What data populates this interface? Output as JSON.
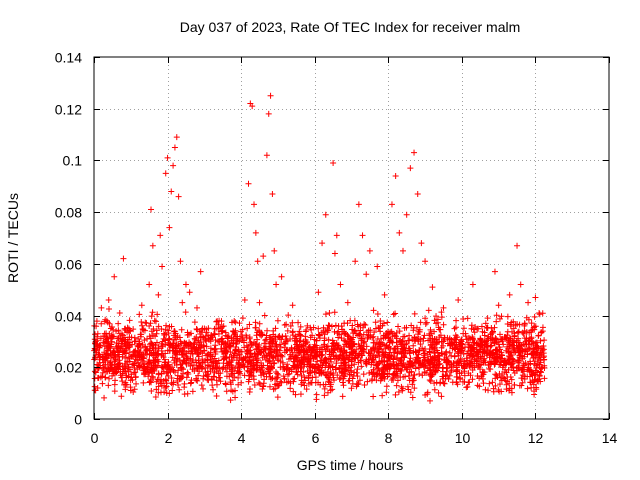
{
  "chart_data": {
    "type": "scatter",
    "title": "Day 037 of 2023, Rate Of TEC Index for receiver malm",
    "xlabel": "GPS time / hours",
    "ylabel": "ROTI / TECUs",
    "xlim": [
      0,
      14
    ],
    "ylim": [
      0,
      0.14
    ],
    "xticks": [
      0,
      2,
      4,
      6,
      8,
      10,
      12,
      14
    ],
    "xtick_labels": [
      "0",
      "2",
      "4",
      "6",
      "8",
      "10",
      "12",
      "14"
    ],
    "yticks": [
      0,
      0.02,
      0.04,
      0.06,
      0.08,
      0.1,
      0.12,
      0.14
    ],
    "ytick_labels": [
      "0",
      "0.02",
      "0.04",
      "0.06",
      "0.08",
      "0.1",
      "0.12",
      "0.14"
    ],
    "grid": true,
    "marker": "+",
    "color": "#ff0000",
    "series": [
      {
        "name": "ROTI",
        "x": [
          0.05,
          0.1,
          0.15,
          0.2,
          0.25,
          0.3,
          0.35,
          0.4,
          0.45,
          0.5,
          0.55,
          0.6,
          0.65,
          0.7,
          0.75,
          0.8,
          0.85,
          0.9,
          0.95,
          1.0,
          1.1,
          1.2,
          1.3,
          1.4,
          1.5,
          1.55,
          1.6,
          1.65,
          1.7,
          1.75,
          1.8,
          1.85,
          1.9,
          1.95,
          2.0,
          2.05,
          2.1,
          2.15,
          2.2,
          2.25,
          2.3,
          2.35,
          2.4,
          2.5,
          2.6,
          2.7,
          2.8,
          2.9,
          3.0,
          3.2,
          3.4,
          3.6,
          3.8,
          4.0,
          4.1,
          4.2,
          4.25,
          4.3,
          4.35,
          4.4,
          4.45,
          4.5,
          4.6,
          4.7,
          4.75,
          4.8,
          4.85,
          4.9,
          4.95,
          5.0,
          5.1,
          5.2,
          5.4,
          5.6,
          5.8,
          6.0,
          6.1,
          6.2,
          6.3,
          6.4,
          6.5,
          6.55,
          6.6,
          6.7,
          6.8,
          6.9,
          7.0,
          7.1,
          7.2,
          7.3,
          7.4,
          7.5,
          7.6,
          7.7,
          7.8,
          7.9,
          8.0,
          8.1,
          8.2,
          8.3,
          8.4,
          8.5,
          8.6,
          8.7,
          8.8,
          8.9,
          9.0,
          9.1,
          9.2,
          9.3,
          9.5,
          9.7,
          9.9,
          10.1,
          10.3,
          10.5,
          10.7,
          10.9,
          11.0,
          11.1,
          11.3,
          11.5,
          11.6,
          11.7,
          11.8,
          11.9,
          12.0,
          12.1,
          12.2
        ],
        "y": [
          0.018,
          0.012,
          0.025,
          0.043,
          0.032,
          0.021,
          0.038,
          0.046,
          0.028,
          0.019,
          0.055,
          0.034,
          0.024,
          0.041,
          0.016,
          0.062,
          0.029,
          0.022,
          0.035,
          0.011,
          0.026,
          0.031,
          0.044,
          0.019,
          0.052,
          0.081,
          0.067,
          0.038,
          0.025,
          0.048,
          0.071,
          0.059,
          0.033,
          0.095,
          0.101,
          0.074,
          0.088,
          0.098,
          0.105,
          0.109,
          0.086,
          0.061,
          0.045,
          0.052,
          0.049,
          0.028,
          0.043,
          0.057,
          0.035,
          0.022,
          0.038,
          0.026,
          0.031,
          0.014,
          0.046,
          0.091,
          0.122,
          0.121,
          0.083,
          0.072,
          0.061,
          0.045,
          0.063,
          0.102,
          0.118,
          0.125,
          0.087,
          0.065,
          0.052,
          0.038,
          0.055,
          0.029,
          0.044,
          0.021,
          0.036,
          0.018,
          0.049,
          0.068,
          0.079,
          0.041,
          0.099,
          0.064,
          0.071,
          0.052,
          0.033,
          0.045,
          0.027,
          0.061,
          0.083,
          0.071,
          0.056,
          0.065,
          0.042,
          0.059,
          0.031,
          0.048,
          0.024,
          0.083,
          0.094,
          0.072,
          0.065,
          0.079,
          0.097,
          0.103,
          0.087,
          0.068,
          0.061,
          0.042,
          0.051,
          0.037,
          0.043,
          0.021,
          0.046,
          0.033,
          0.052,
          0.028,
          0.039,
          0.057,
          0.044,
          0.031,
          0.048,
          0.067,
          0.052,
          0.036,
          0.045,
          0.029,
          0.047,
          0.041,
          0.034
        ]
      }
    ],
    "background_density": {
      "note": "dense cloud of ROTI samples between ~0.005 and ~0.04 TECU/s spanning 0–12.2 h",
      "x_range": [
        0.0,
        12.25
      ],
      "y_range": [
        0.005,
        0.04
      ]
    }
  }
}
